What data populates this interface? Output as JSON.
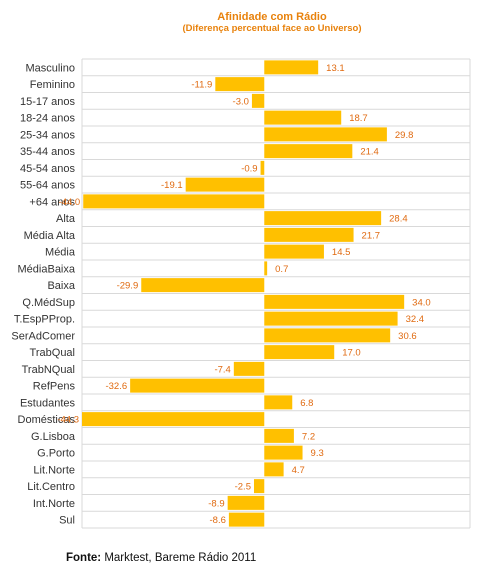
{
  "chart_data": {
    "type": "bar",
    "orientation": "horizontal",
    "title": "Afinidade com Rádio",
    "subtitle": "(Diferença percentual  face ao Universo)",
    "categories": [
      "Masculino",
      "Feminino",
      "15-17 anos",
      "18-24 anos",
      "25-34 anos",
      "35-44 anos",
      "45-54 anos",
      "55-64 anos",
      "+64 anos",
      "Alta",
      "Média Alta",
      "Média",
      "MédiaBaixa",
      "Baixa",
      "Q.MédSup",
      "T.EspPProp.",
      "SerAdComer",
      "TrabQual",
      "TrabNQual",
      "RefPens",
      "Estudantes",
      "Domésticas",
      "G.Lisboa",
      "G.Porto",
      "Lit.Norte",
      "Lit.Centro",
      "Int.Norte",
      "Sul"
    ],
    "values": [
      13.1,
      -11.9,
      -3.0,
      18.7,
      29.8,
      21.4,
      -0.9,
      -19.1,
      -44.0,
      28.4,
      21.7,
      14.5,
      0.7,
      -29.9,
      34.0,
      32.4,
      30.6,
      17.0,
      -7.4,
      -32.6,
      6.8,
      -44.3,
      7.2,
      9.3,
      4.7,
      -2.5,
      -8.9,
      -8.6
    ],
    "value_labels": [
      "13.1",
      "-11.9",
      "-3.0",
      "18.7",
      "29.8",
      "21.4",
      "-0.9",
      "-19.1",
      "-44.0",
      "28.4",
      "21.7",
      "14.5",
      "0.7",
      "-29.9",
      "34.0",
      "32.4",
      "30.6",
      "17.0",
      "-7.4",
      "-32.6",
      "6.8",
      "-44.3",
      "7.2",
      "9.3",
      "4.7",
      "-2.5",
      "-8.9",
      "-8.6"
    ],
    "xlim": [
      -44.3,
      50
    ],
    "grid": true,
    "bar_color": "#FFC000",
    "label_color": "#E06A10",
    "title_color": "#E8820C"
  },
  "source": {
    "prefix": "Fonte:",
    "text": " Marktest, Bareme Rádio 2011"
  }
}
